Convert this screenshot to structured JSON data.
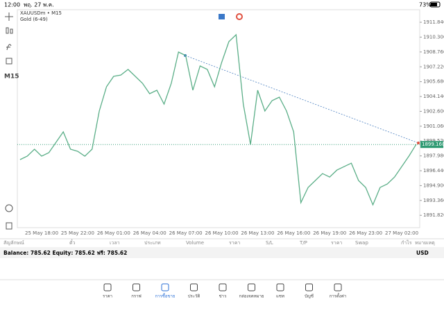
{
  "status": {
    "time": "12:00",
    "date": "พฤ. 27 พ.ค.",
    "battery": "73%"
  },
  "symbol": "XAUUSDm • M15",
  "description": "Gold (6-49)",
  "timeframe": "M15",
  "chart_data": {
    "type": "line",
    "color": "#5aae87",
    "categories": [
      null,
      null,
      null,
      "25 May 18:00",
      null,
      null,
      null,
      null,
      "25 May 22:00",
      null,
      null,
      null,
      null,
      "26 May 01:00",
      null,
      null,
      null,
      null,
      "26 May 04:00",
      null,
      null,
      null,
      null,
      "26 May 07:00",
      null,
      null,
      null,
      null,
      "26 May 10:00",
      null,
      null,
      null,
      null,
      "26 May 13:00",
      null,
      null,
      null,
      null,
      "26 May 16:00",
      null,
      null,
      null,
      null,
      "26 May 19:00",
      null,
      null,
      null,
      null,
      "26 May 23:00",
      null,
      null,
      null,
      null,
      "27 May 02:00",
      null,
      null
    ],
    "values": [
      1897.59,
      1897.95,
      1898.67,
      1897.95,
      1898.31,
      1899.39,
      1900.47,
      1898.67,
      1898.46,
      1897.95,
      1898.67,
      1902.63,
      1905.15,
      1906.23,
      1906.37,
      1906.95,
      1906.23,
      1905.51,
      1904.43,
      1904.79,
      1903.35,
      1905.51,
      1908.75,
      1908.39,
      1904.79,
      1907.31,
      1906.95,
      1905.15,
      1907.67,
      1909.83,
      1910.55,
      1903.35,
      1899.17,
      1904.79,
      1902.63,
      1903.71,
      1904.07,
      1902.63,
      1900.47,
      1893.13,
      1894.71,
      1895.43,
      1896.15,
      1895.79,
      1896.51,
      1896.87,
      1897.23,
      1895.43,
      1894.71,
      1892.91,
      1894.71,
      1895.07,
      1895.79,
      1896.87,
      1897.95,
      1899.16
    ],
    "ylim": [
      1890.54,
      1913.14
    ],
    "yticks": [
      {
        "value": 1911.84,
        "label": "1911.840"
      },
      {
        "value": 1910.3,
        "label": "1910.300"
      },
      {
        "value": 1908.76,
        "label": "1908.760"
      },
      {
        "value": 1907.22,
        "label": "1907.220"
      },
      {
        "value": 1905.68,
        "label": "1905.680"
      },
      {
        "value": 1904.14,
        "label": "1904.140"
      },
      {
        "value": 1902.6,
        "label": "1902.600"
      },
      {
        "value": 1901.06,
        "label": "1901.060"
      },
      {
        "value": 1899.52,
        "label": "1899.520"
      },
      {
        "value": 1897.98,
        "label": "1897.980"
      },
      {
        "value": 1896.44,
        "label": "1896.440"
      },
      {
        "value": 1894.9,
        "label": "1894.900"
      },
      {
        "value": 1893.36,
        "label": "1893.360"
      },
      {
        "value": 1891.82,
        "label": "1891.820"
      }
    ],
    "current_price": {
      "value": 1899.16,
      "label": "1899.160"
    }
  },
  "columns": [
    "สัญลักษณ์",
    "ตั๋ว",
    "เวลา",
    "ประเภท",
    "Volume",
    "ราคา",
    "S/L",
    "T/P",
    "ราคา",
    "Swap",
    "กำไร",
    "หมายเหตุ"
  ],
  "balance": "Balance: 785.62 Equity: 785.62 ฟรี: 785.62",
  "currency": "USD",
  "nav": [
    "ราคา",
    "กราฟ",
    "การซื้อขาย",
    "ประวัติ",
    "ข่าว",
    "กล่องจดหมาย",
    "แชท",
    "บัญชี",
    "การตั้งค่า"
  ]
}
